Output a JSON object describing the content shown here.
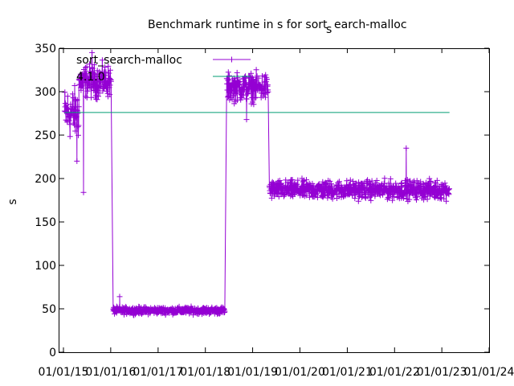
{
  "chart_data": {
    "type": "line",
    "title_main": "Benchmark runtime in s for sort",
    "title_sub": "s",
    "title_rest": "earch-malloc",
    "ylabel": "s",
    "xlabel": "",
    "ylim": [
      0,
      350
    ],
    "yticks": [
      "0",
      "50",
      "100",
      "150",
      "200",
      "250",
      "300",
      "350"
    ],
    "xlim": [
      "2014-12-01",
      "2024-01-01"
    ],
    "xticks": [
      {
        "label": "01/01/15",
        "date": "2015-01-01"
      },
      {
        "label": "01/01/16",
        "date": "2016-01-01"
      },
      {
        "label": "01/01/17",
        "date": "2017-01-01"
      },
      {
        "label": "01/01/18",
        "date": "2018-01-01"
      },
      {
        "label": "01/01/19",
        "date": "2019-01-01"
      },
      {
        "label": "01/01/20",
        "date": "2020-01-01"
      },
      {
        "label": "01/01/21",
        "date": "2021-01-01"
      },
      {
        "label": "01/01/22",
        "date": "2022-01-01"
      },
      {
        "label": "01/01/23",
        "date": "2023-01-01"
      },
      {
        "label": "01/01/24",
        "date": "2024-01-01"
      }
    ],
    "grid": false,
    "legend_position": "top-left",
    "series": [
      {
        "name": "sort_search-malloc",
        "color": "#9400d3",
        "marker": "plus",
        "segments": [
          {
            "start": "2015-01-10",
            "end": "2015-05-01",
            "mean": 275,
            "spread": 22
          },
          {
            "start": "2015-05-01",
            "end": "2016-01-05",
            "mean": 312,
            "spread": 14
          },
          {
            "start": "2016-01-20",
            "end": "2018-06-01",
            "mean": 48,
            "spread": 3
          },
          {
            "start": "2018-06-15",
            "end": "2019-05-01",
            "mean": 305,
            "spread": 12
          },
          {
            "start": "2019-05-10",
            "end": "2023-03-01",
            "mean": 187,
            "spread": 8
          }
        ],
        "outliers": [
          {
            "date": "2015-04-15",
            "value": 220
          },
          {
            "date": "2015-06-05",
            "value": 184
          },
          {
            "date": "2015-08-10",
            "value": 345
          },
          {
            "date": "2016-03-10",
            "value": 64
          },
          {
            "date": "2018-11-15",
            "value": 268
          },
          {
            "date": "2022-04-01",
            "value": 235
          }
        ]
      },
      {
        "name": "4.1.0",
        "color": "#009e73",
        "marker": "none",
        "points": [
          {
            "date": "2015-01-10",
            "value": 276
          },
          {
            "date": "2023-03-01",
            "value": 276
          }
        ]
      }
    ]
  }
}
